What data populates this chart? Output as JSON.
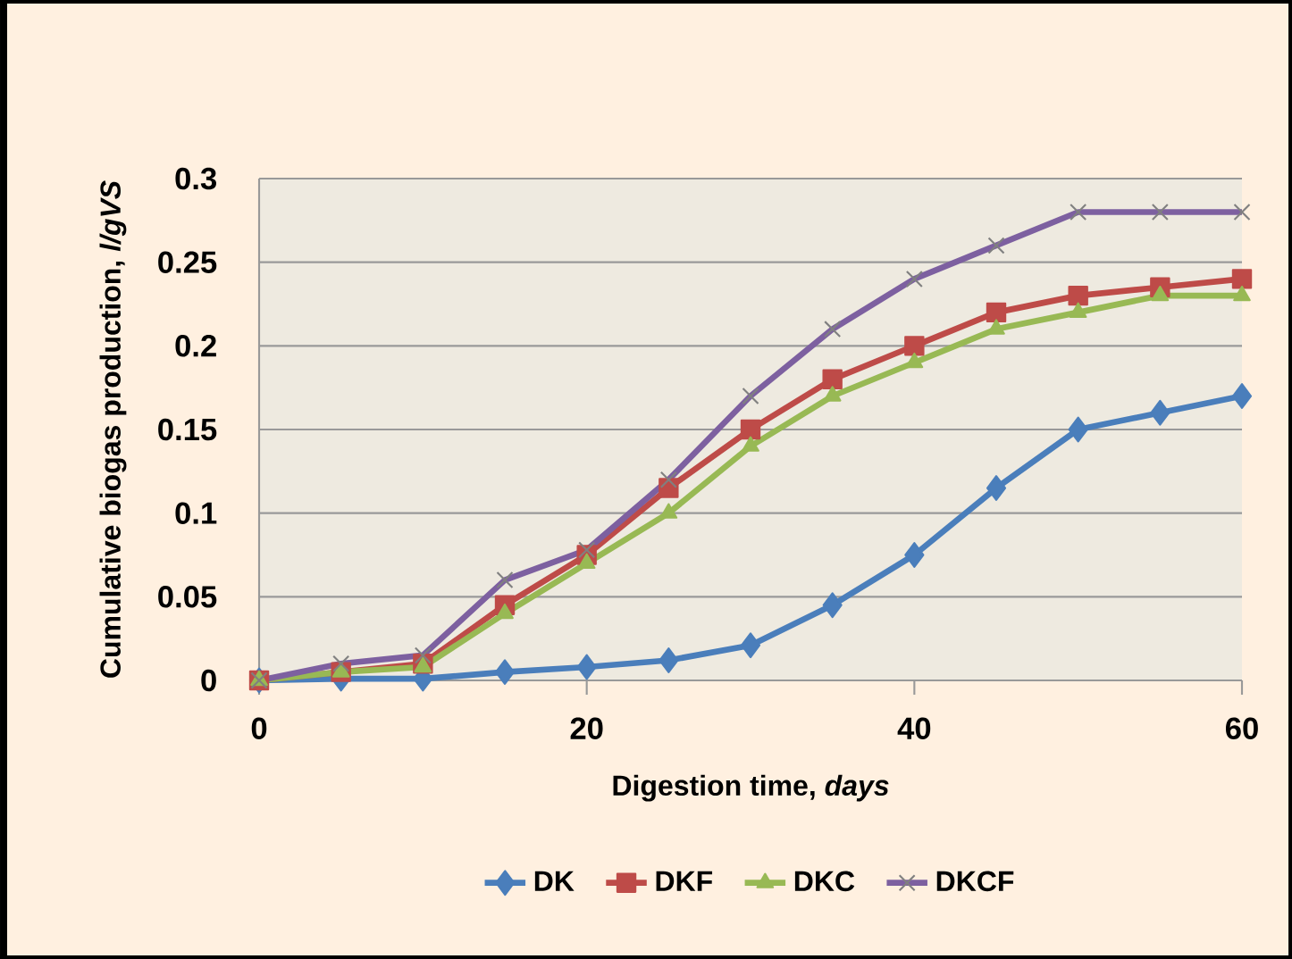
{
  "chart_data": {
    "type": "line",
    "xlabel": "Digestion time, *days*",
    "ylabel": "Cumulative biogas production, *l/gVS*",
    "x": [
      0,
      5,
      10,
      15,
      20,
      25,
      30,
      35,
      40,
      45,
      50,
      55,
      60
    ],
    "series": [
      {
        "name": "DK",
        "color": "#4a7ebb",
        "marker": "diamond",
        "values": [
          0,
          0.001,
          0.001,
          0.005,
          0.008,
          0.012,
          0.021,
          0.045,
          0.075,
          0.115,
          0.15,
          0.16,
          0.17
        ]
      },
      {
        "name": "DKF",
        "color": "#be4b48",
        "marker": "square",
        "values": [
          0,
          0.005,
          0.01,
          0.045,
          0.075,
          0.115,
          0.15,
          0.18,
          0.2,
          0.22,
          0.23,
          0.235,
          0.24
        ]
      },
      {
        "name": "DKC",
        "color": "#98b954",
        "marker": "triangle",
        "values": [
          0,
          0.005,
          0.008,
          0.04,
          0.07,
          0.1,
          0.14,
          0.17,
          0.19,
          0.21,
          0.22,
          0.23,
          0.23
        ]
      },
      {
        "name": "DKCF",
        "color": "#7d60a0",
        "marker": "cross",
        "values": [
          0,
          0.01,
          0.015,
          0.06,
          0.078,
          0.12,
          0.17,
          0.21,
          0.24,
          0.26,
          0.28,
          0.28,
          0.28
        ]
      }
    ],
    "xlim": [
      0,
      60
    ],
    "xticks": [
      0,
      20,
      40,
      60
    ],
    "ylim": [
      0,
      0.3
    ],
    "yticks": [
      0,
      {
        "value": 0.05,
        "label": "0.05"
      },
      {
        "value": 0.1,
        "label": "0.1"
      },
      {
        "value": 0.15,
        "label": "0.15"
      },
      {
        "value": 0.2,
        "label": "0.2"
      },
      {
        "value": 0.25,
        "label": "0.25"
      },
      {
        "value": 0.3,
        "label": "0.3"
      }
    ],
    "grid": "y",
    "legend": "bottom",
    "line_style": "solid"
  }
}
